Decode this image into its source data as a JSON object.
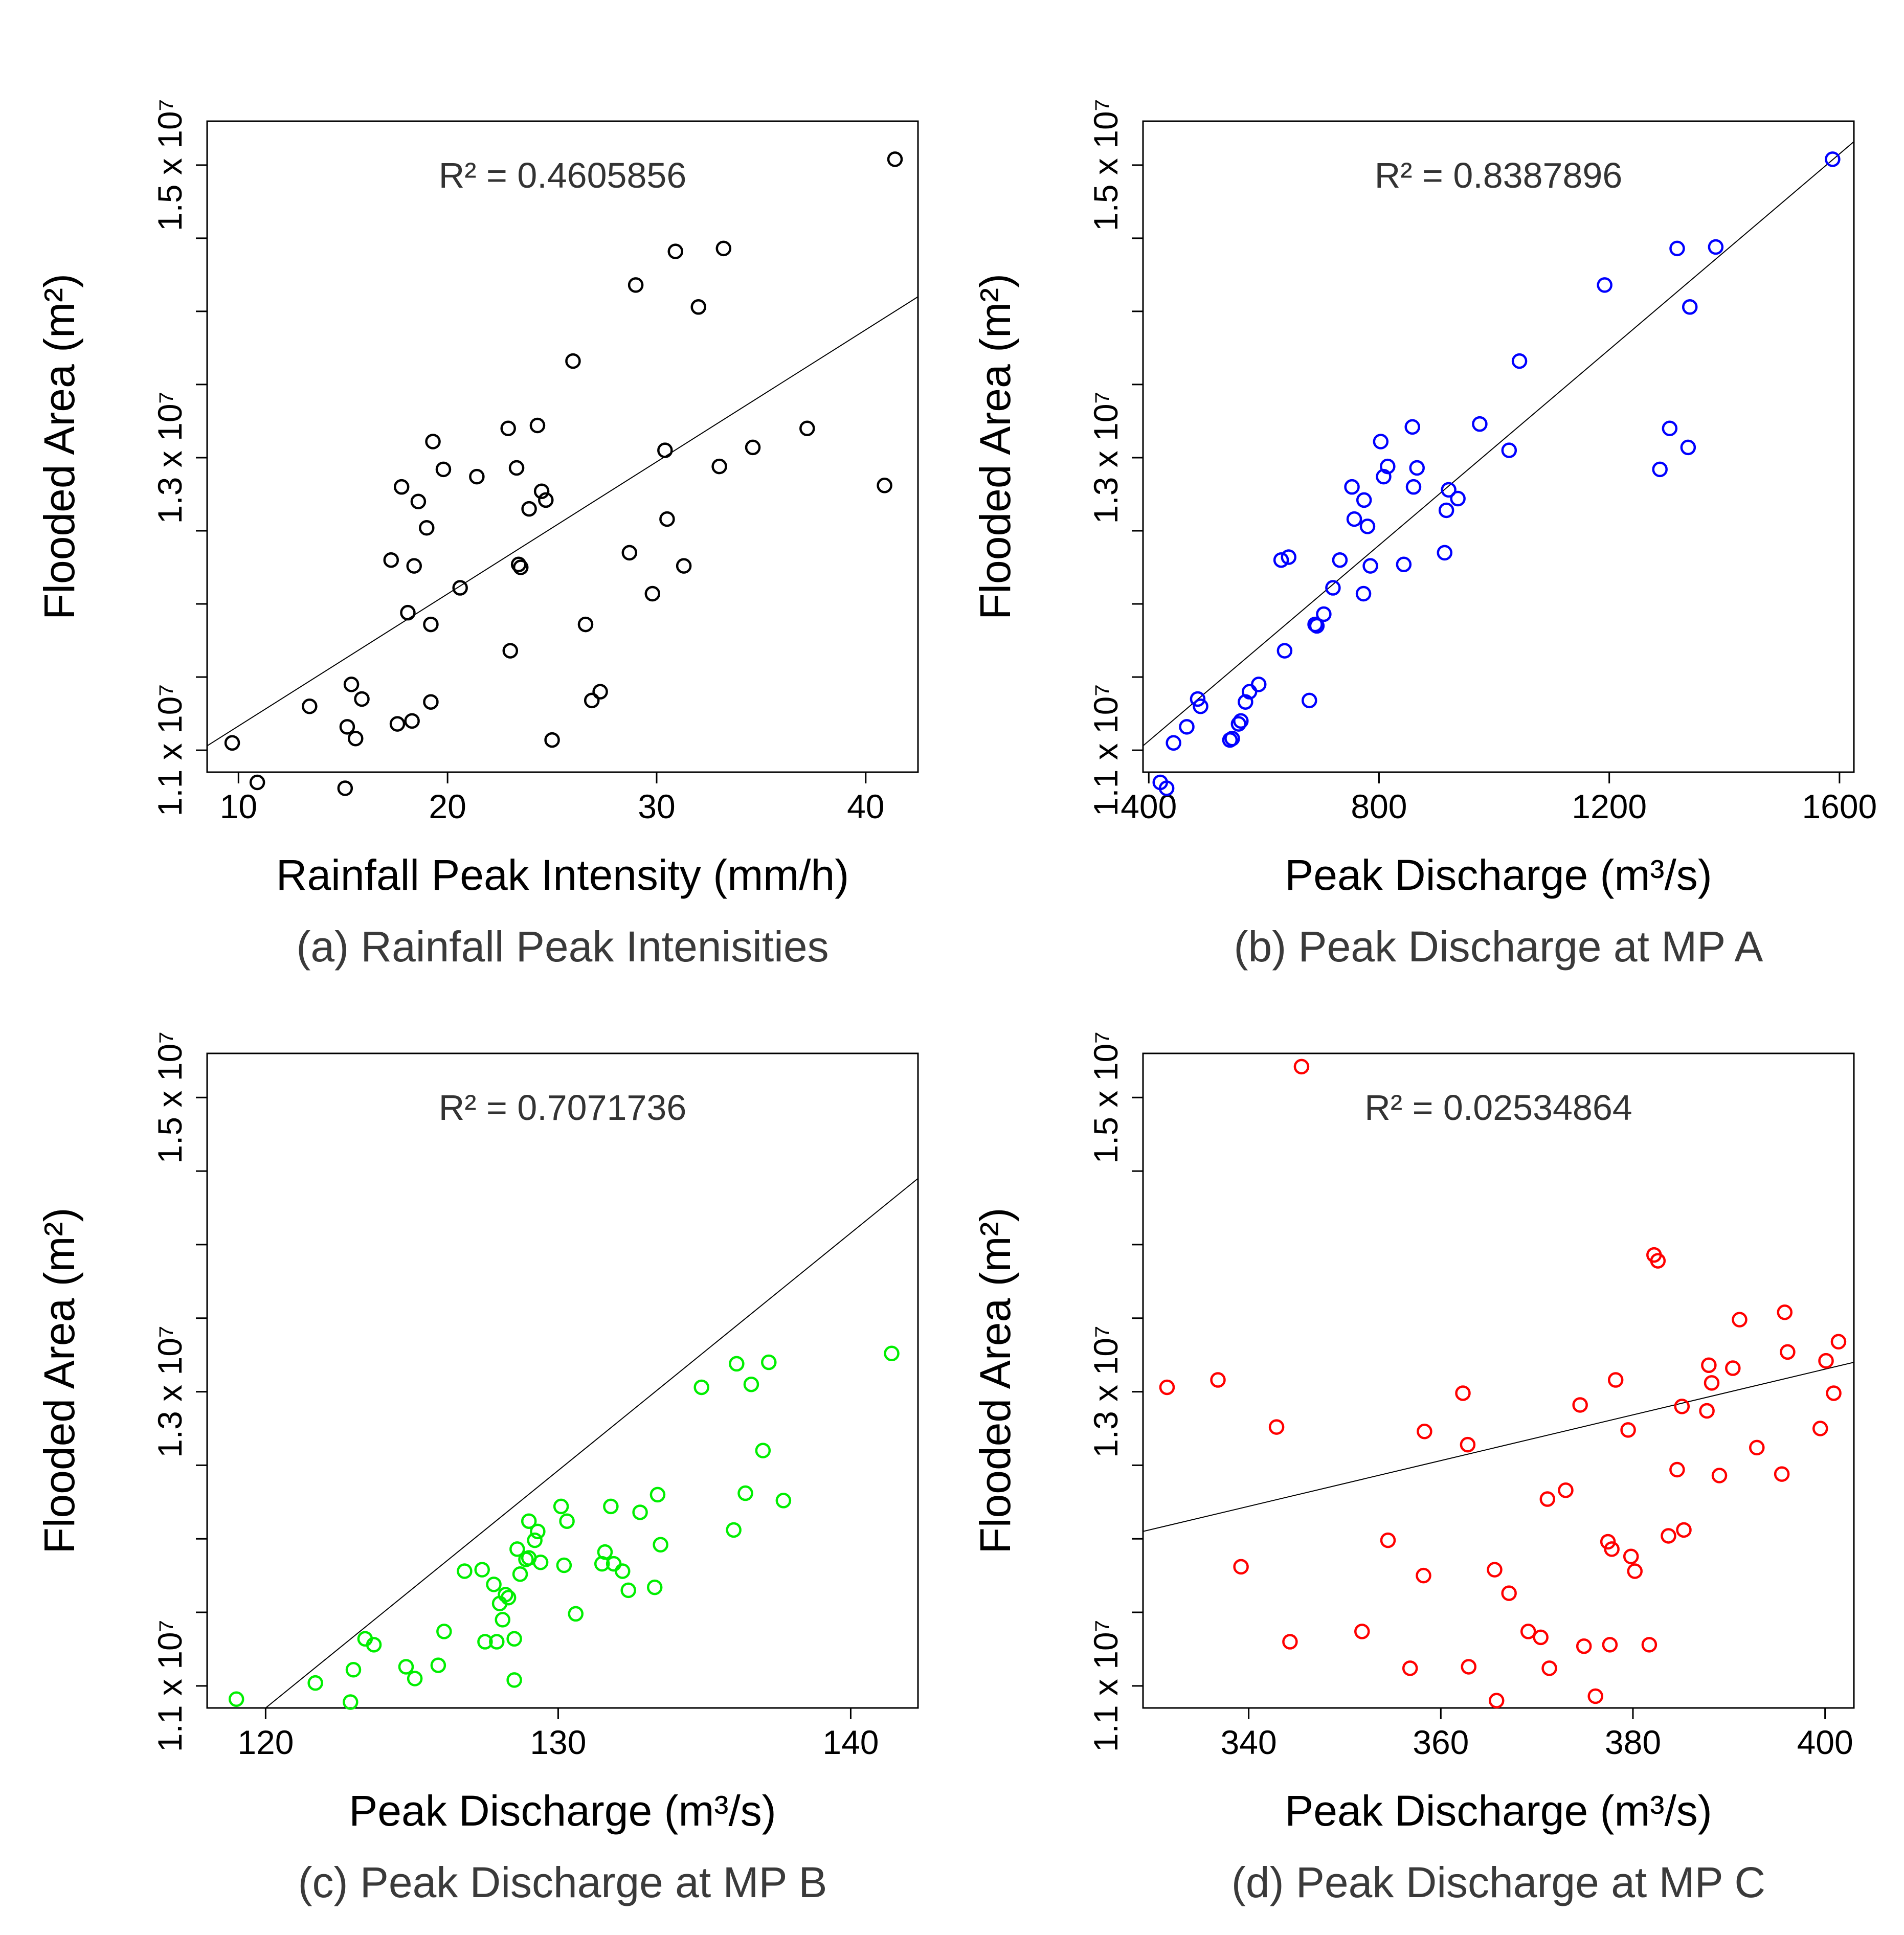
{
  "chart_data": [
    {
      "type": "scatter",
      "caption": "(a) Rainfall Peak Intenisities",
      "xlabel": "Rainfall Peak Intensity (mm/h)",
      "ylabel": "Flooded Area (m²)",
      "annotation": "R² = 0.4605856",
      "r_squared": "0.4605856",
      "color": "#000000",
      "xlim": [
        8.5,
        42.5
      ],
      "ylim": [
        10.85,
        15.3
      ],
      "x_ticks": [
        10,
        20,
        30,
        40
      ],
      "y_ticks": [
        11,
        13,
        15
      ],
      "y_tick_labels": [
        "1.1 x 10⁷",
        "1.3 x 10⁷",
        "1.5 x 10⁷"
      ],
      "y_minor_ticks": [
        12,
        14
      ],
      "fit_line": {
        "x": [
          8.5,
          42.5
        ],
        "y": [
          11.03,
          14.1
        ]
      },
      "points": {
        "x": [
          9.7,
          10.9,
          13.4,
          15.1,
          15.2,
          15.4,
          15.6,
          15.9,
          17.3,
          17.6,
          17.8,
          18.1,
          18.3,
          18.4,
          18.6,
          19.0,
          19.2,
          19.2,
          19.3,
          19.8,
          20.6,
          21.4,
          22.9,
          23.0,
          23.3,
          23.4,
          23.5,
          23.9,
          24.3,
          24.5,
          24.7,
          25.0,
          26.0,
          26.6,
          26.9,
          27.3,
          28.7,
          29.0,
          29.8,
          30.4,
          30.5,
          30.9,
          31.3,
          32.0,
          33.0,
          33.2,
          34.6,
          37.2,
          40.9,
          41.4
        ],
        "y": [
          11.05,
          10.78,
          11.3,
          10.74,
          11.16,
          11.45,
          11.08,
          11.35,
          12.3,
          11.18,
          12.8,
          11.94,
          11.2,
          12.26,
          12.7,
          12.52,
          11.33,
          11.86,
          13.11,
          12.92,
          12.11,
          12.87,
          13.2,
          11.68,
          12.93,
          12.27,
          12.25,
          12.65,
          13.22,
          12.77,
          12.71,
          11.07,
          13.66,
          11.86,
          11.34,
          11.4,
          12.35,
          14.18,
          12.07,
          13.05,
          12.58,
          14.41,
          12.26,
          14.03,
          12.94,
          14.43,
          13.07,
          13.2,
          12.81,
          15.04
        ]
      }
    },
    {
      "type": "scatter",
      "caption": "(b) Peak Discharge at MP A",
      "xlabel": "Peak Discharge (m³/s)",
      "ylabel": "Flooded Area (m²)",
      "annotation": "R² = 0.8387896",
      "r_squared": "0.8387896",
      "color": "#0000ff",
      "xlim": [
        390,
        1625
      ],
      "ylim": [
        10.85,
        15.3
      ],
      "x_ticks": [
        400,
        800,
        1200,
        1600
      ],
      "y_ticks": [
        11,
        13,
        15
      ],
      "y_tick_labels": [
        "1.1 x 10⁷",
        "1.3 x 10⁷",
        "1.5 x 10⁷"
      ],
      "y_minor_ticks": [
        12,
        14
      ],
      "fit_line": {
        "x": [
          390,
          1625
        ],
        "y": [
          11.03,
          15.16
        ]
      },
      "points": {
        "x": [
          420,
          431,
          443,
          466,
          485,
          490,
          541,
          545,
          556,
          560,
          568,
          575,
          591,
          630,
          636,
          643,
          679,
          689,
          692,
          704,
          720,
          732,
          753,
          757,
          773,
          774,
          780,
          785,
          803,
          808,
          815,
          843,
          858,
          860,
          866,
          914,
          917,
          921,
          937,
          975,
          1026,
          1044,
          1192,
          1288,
          1305,
          1318,
          1337,
          1340,
          1385,
          1588
        ],
        "y": [
          10.78,
          10.74,
          11.05,
          11.16,
          11.35,
          11.3,
          11.07,
          11.08,
          11.18,
          11.2,
          11.33,
          11.4,
          11.45,
          12.3,
          11.68,
          12.32,
          11.34,
          11.86,
          11.85,
          11.93,
          12.11,
          12.3,
          12.8,
          12.58,
          12.07,
          12.71,
          12.53,
          12.26,
          13.11,
          12.87,
          12.94,
          12.27,
          13.21,
          12.8,
          12.93,
          12.35,
          12.64,
          12.78,
          12.72,
          13.23,
          13.05,
          13.66,
          14.18,
          12.92,
          13.2,
          14.43,
          13.07,
          14.03,
          14.44,
          15.04
        ]
      }
    },
    {
      "type": "scatter",
      "caption": "(c) Peak Discharge at MP B",
      "xlabel": "Peak Discharge (m³/s)",
      "ylabel": "Flooded Area (m²)",
      "annotation": "R² = 0.7071736",
      "r_squared": "0.7071736",
      "color": "#00ee00",
      "xlim": [
        118,
        142.3
      ],
      "ylim": [
        10.85,
        15.3
      ],
      "x_ticks": [
        120,
        130,
        140
      ],
      "y_ticks": [
        11,
        13,
        15
      ],
      "y_tick_labels": [
        "1.1 x 10⁷",
        "1.3 x 10⁷",
        "1.5 x 10⁷"
      ],
      "y_minor_ticks": [
        12,
        14
      ],
      "fit_line": {
        "x": [
          120,
          142.3
        ],
        "y": [
          10.85,
          14.45
        ]
      },
      "points": {
        "x": [
          119.0,
          121.7,
          122.9,
          123.0,
          123.4,
          123.7,
          124.8,
          125.1,
          125.9,
          126.1,
          126.8,
          127.4,
          127.5,
          127.8,
          127.9,
          128.0,
          128.1,
          128.2,
          128.3,
          128.5,
          128.5,
          128.6,
          128.7,
          128.9,
          129.0,
          129.0,
          129.2,
          129.3,
          129.4,
          130.1,
          130.2,
          130.3,
          130.6,
          131.5,
          131.6,
          131.8,
          131.9,
          132.2,
          132.4,
          132.8,
          133.3,
          133.4,
          133.5,
          134.9,
          136.0,
          136.1,
          136.4,
          136.6,
          137.0,
          137.2,
          137.7,
          141.4
        ],
        "y": [
          10.91,
          11.02,
          10.89,
          11.11,
          11.32,
          11.28,
          11.13,
          11.05,
          11.14,
          11.37,
          11.78,
          11.79,
          11.3,
          11.69,
          11.3,
          11.56,
          11.45,
          11.62,
          11.6,
          11.32,
          11.04,
          11.93,
          11.76,
          11.86,
          12.12,
          11.87,
          11.99,
          12.05,
          11.84,
          12.22,
          11.82,
          12.12,
          11.49,
          11.83,
          11.91,
          12.22,
          11.83,
          11.78,
          11.65,
          12.18,
          11.67,
          12.3,
          11.96,
          13.03,
          12.06,
          13.19,
          12.31,
          13.05,
          12.6,
          13.2,
          12.26,
          13.26
        ]
      }
    },
    {
      "type": "scatter",
      "caption": "(d) Peak Discharge at MP C",
      "xlabel": "Peak Discharge (m³/s)",
      "ylabel": "Flooded Area (m²)",
      "annotation": "R² = 0.02534864",
      "r_squared": "0.02534864",
      "color": "#ff0000",
      "xlim": [
        329,
        403
      ],
      "ylim": [
        10.85,
        15.3
      ],
      "x_ticks": [
        340,
        360,
        380,
        400
      ],
      "y_ticks": [
        11,
        13,
        15
      ],
      "y_tick_labels": [
        "1.1 x 10⁷",
        "1.3 x 10⁷",
        "1.5 x 10⁷"
      ],
      "y_minor_ticks": [
        12,
        14
      ],
      "fit_line": {
        "x": [
          329,
          403
        ],
        "y": [
          12.05,
          13.2
        ]
      },
      "points": {
        "x": [
          331.5,
          336.8,
          339.2,
          342.9,
          344.3,
          345.5,
          351.8,
          354.5,
          356.8,
          358.2,
          358.3,
          362.3,
          362.8,
          362.9,
          365.6,
          365.8,
          367.1,
          369.1,
          370.4,
          371.1,
          371.3,
          373.0,
          374.5,
          374.9,
          376.1,
          377.4,
          377.6,
          377.8,
          378.2,
          379.5,
          379.8,
          380.2,
          381.7,
          382.2,
          382.6,
          383.7,
          384.6,
          385.1,
          385.3,
          387.7,
          387.9,
          388.2,
          389.0,
          390.4,
          391.1,
          392.9,
          395.5,
          395.8,
          396.1,
          399.5,
          400.1,
          400.9,
          401.4
        ],
        "y": [
          13.03,
          13.08,
          11.81,
          12.76,
          11.3,
          15.21,
          11.37,
          11.99,
          11.12,
          11.75,
          12.73,
          12.99,
          12.64,
          11.13,
          11.79,
          10.9,
          11.63,
          11.37,
          11.33,
          12.27,
          11.12,
          12.33,
          12.91,
          11.27,
          10.93,
          11.98,
          11.28,
          11.93,
          13.08,
          12.74,
          11.88,
          11.78,
          11.28,
          13.93,
          13.89,
          12.02,
          12.47,
          12.9,
          12.06,
          12.87,
          13.18,
          13.06,
          12.43,
          13.16,
          13.49,
          12.62,
          12.44,
          13.54,
          13.27,
          12.75,
          13.21,
          12.99,
          13.34
        ]
      }
    }
  ]
}
